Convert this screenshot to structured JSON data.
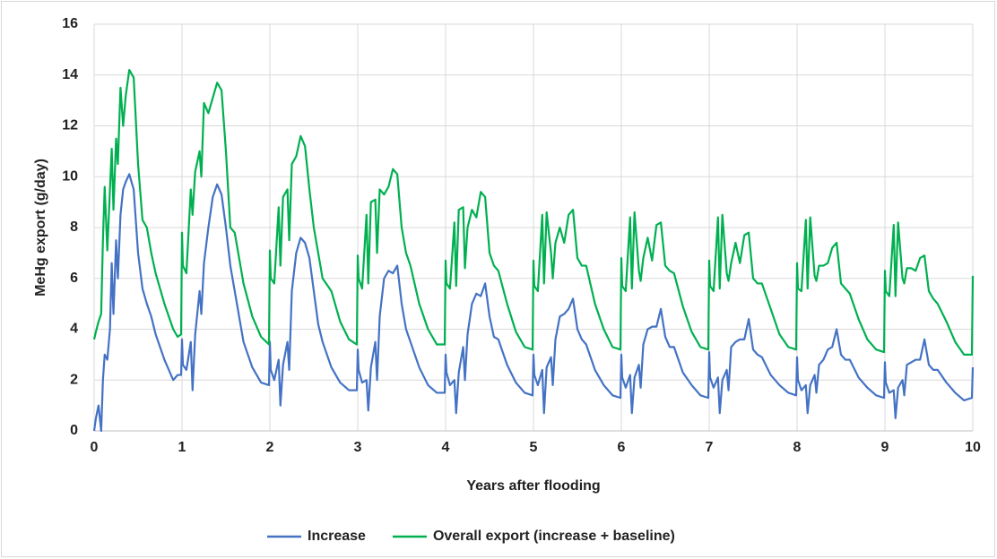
{
  "chart_data": {
    "type": "line",
    "x_label": "Years after flooding",
    "y_label": "MeHg export (g/day)",
    "x": [
      0,
      0.02,
      0.05,
      0.08,
      0.1,
      0.12,
      0.15,
      0.18,
      0.2,
      0.22,
      0.25,
      0.27,
      0.3,
      0.33,
      0.36,
      0.4,
      0.45,
      0.5,
      0.55,
      0.6,
      0.65,
      0.7,
      0.8,
      0.9,
      0.95,
      0.99,
      1,
      1.01,
      1.05,
      1.1,
      1.12,
      1.15,
      1.2,
      1.22,
      1.25,
      1.3,
      1.35,
      1.4,
      1.45,
      1.5,
      1.55,
      1.6,
      1.7,
      1.8,
      1.9,
      1.99,
      2,
      2.01,
      2.05,
      2.1,
      2.12,
      2.15,
      2.2,
      2.22,
      2.25,
      2.3,
      2.35,
      2.4,
      2.45,
      2.5,
      2.55,
      2.6,
      2.7,
      2.8,
      2.9,
      2.99,
      3,
      3.01,
      3.05,
      3.1,
      3.12,
      3.15,
      3.2,
      3.22,
      3.25,
      3.3,
      3.35,
      3.4,
      3.45,
      3.5,
      3.55,
      3.6,
      3.7,
      3.8,
      3.9,
      3.99,
      4,
      4.01,
      4.05,
      4.1,
      4.12,
      4.15,
      4.2,
      4.22,
      4.25,
      4.3,
      4.35,
      4.4,
      4.45,
      4.5,
      4.55,
      4.6,
      4.7,
      4.8,
      4.9,
      4.99,
      5,
      5.01,
      5.05,
      5.1,
      5.12,
      5.15,
      5.2,
      5.22,
      5.25,
      5.3,
      5.35,
      5.4,
      5.45,
      5.5,
      5.55,
      5.6,
      5.7,
      5.8,
      5.9,
      5.99,
      6,
      6.01,
      6.05,
      6.1,
      6.12,
      6.15,
      6.2,
      6.22,
      6.25,
      6.3,
      6.35,
      6.4,
      6.45,
      6.5,
      6.55,
      6.6,
      6.7,
      6.8,
      6.9,
      6.99,
      7,
      7.01,
      7.05,
      7.1,
      7.12,
      7.15,
      7.2,
      7.22,
      7.25,
      7.3,
      7.35,
      7.4,
      7.45,
      7.5,
      7.55,
      7.6,
      7.7,
      7.8,
      7.9,
      7.99,
      8,
      8.01,
      8.05,
      8.1,
      8.12,
      8.15,
      8.2,
      8.22,
      8.25,
      8.3,
      8.35,
      8.4,
      8.45,
      8.5,
      8.55,
      8.6,
      8.7,
      8.8,
      8.9,
      8.99,
      9,
      9.01,
      9.05,
      9.1,
      9.12,
      9.15,
      9.2,
      9.22,
      9.25,
      9.3,
      9.35,
      9.4,
      9.45,
      9.5,
      9.55,
      9.6,
      9.7,
      9.8,
      9.9,
      9.99,
      10
    ],
    "series": [
      {
        "name": "Increase",
        "color": "#4472c4",
        "values": [
          0,
          0.5,
          1,
          0,
          2,
          3,
          2.8,
          4,
          6.6,
          4.6,
          7.5,
          6,
          8.5,
          9.5,
          9.8,
          10.1,
          9.5,
          7,
          5.6,
          5,
          4.5,
          3.8,
          2.8,
          2,
          2.2,
          2.2,
          3.6,
          2.6,
          2.4,
          3.5,
          1.6,
          3.8,
          5.5,
          4.6,
          6.6,
          8,
          9.2,
          9.7,
          9.3,
          8,
          6.5,
          5.5,
          3.5,
          2.5,
          1.9,
          1.8,
          3.5,
          2.4,
          2,
          2.8,
          1,
          2.6,
          3.5,
          2.4,
          5.5,
          7,
          7.6,
          7.4,
          6.8,
          5.5,
          4.2,
          3.5,
          2.5,
          1.9,
          1.6,
          1.6,
          3.2,
          2.4,
          1.9,
          2,
          0.8,
          2.5,
          3.5,
          2,
          4.5,
          6,
          6.3,
          6.2,
          6.5,
          5,
          4,
          3.5,
          2.5,
          1.8,
          1.5,
          1.5,
          3,
          2.3,
          1.8,
          2,
          0.7,
          2.3,
          3.3,
          2,
          3.8,
          5,
          5.4,
          5.3,
          5.8,
          4.5,
          3.7,
          3.6,
          2.6,
          1.9,
          1.5,
          1.4,
          3,
          2.2,
          1.8,
          2.4,
          0.7,
          2.5,
          2.9,
          1.8,
          3.6,
          4.5,
          4.6,
          4.8,
          5.2,
          4,
          3.6,
          3.4,
          2.4,
          1.8,
          1.4,
          1.3,
          3,
          2.1,
          1.7,
          2.2,
          0.7,
          2.1,
          2.6,
          1.7,
          3.4,
          4,
          4.1,
          4.1,
          4.8,
          3.7,
          3.3,
          3.3,
          2.3,
          1.8,
          1.4,
          1.3,
          3.1,
          2.1,
          1.7,
          2.1,
          0.7,
          2,
          2.4,
          1.6,
          3.3,
          3.5,
          3.6,
          3.6,
          4.4,
          3.2,
          3,
          2.9,
          2.2,
          1.8,
          1.5,
          1.4,
          2.9,
          2,
          1.6,
          1.8,
          0.7,
          1.8,
          2.2,
          1.5,
          2.6,
          2.8,
          3.2,
          3.3,
          4,
          3,
          2.8,
          2.8,
          2.1,
          1.7,
          1.4,
          1.3,
          2.7,
          1.9,
          1.5,
          1.6,
          0.5,
          1.7,
          2,
          1.4,
          2.6,
          2.7,
          2.8,
          2.8,
          3.6,
          2.6,
          2.4,
          2.4,
          1.9,
          1.5,
          1.2,
          1.3,
          2.5
        ]
      },
      {
        "name": "Overall export (increase + baseline)",
        "color": "#00b050",
        "values": [
          3.6,
          3.9,
          4.3,
          4.6,
          7.5,
          9.6,
          7.1,
          9.5,
          11.1,
          8.7,
          11.5,
          10.5,
          13.5,
          12,
          13.2,
          14.2,
          13.9,
          10.5,
          8.3,
          8,
          7,
          6.2,
          5,
          4,
          3.7,
          3.8,
          7.8,
          6.5,
          6.2,
          9.5,
          8.5,
          10.2,
          11,
          10,
          12.9,
          12.5,
          13.1,
          13.7,
          13.4,
          11,
          8,
          7.8,
          5.8,
          4.5,
          3.7,
          3.4,
          7.1,
          6,
          5.8,
          8.8,
          6.5,
          9.2,
          9.5,
          7.5,
          10.5,
          10.8,
          11.6,
          11.2,
          9.5,
          8,
          7,
          6,
          5.5,
          4.3,
          3.6,
          3.4,
          6.9,
          6,
          5.6,
          8.5,
          5.8,
          9,
          9.1,
          7,
          9.5,
          9.3,
          9.6,
          10.3,
          10.1,
          8,
          7,
          6.5,
          5,
          4,
          3.4,
          3.4,
          6.7,
          5.8,
          5.6,
          8.2,
          5.7,
          8.7,
          8.8,
          6.4,
          8,
          8.7,
          8.4,
          9.4,
          9.2,
          7,
          6.5,
          6.3,
          5,
          3.9,
          3.3,
          3.2,
          6.7,
          5.7,
          5.5,
          8.5,
          5.8,
          8.6,
          7,
          6,
          7.4,
          8,
          7.4,
          8.5,
          8.7,
          6.8,
          6.5,
          6.5,
          5,
          4,
          3.3,
          3.2,
          6.8,
          5.7,
          5.5,
          8.4,
          5.6,
          8.6,
          6.3,
          5.9,
          6.8,
          7.6,
          6.7,
          8.1,
          8.2,
          6.5,
          6.3,
          6.2,
          4.9,
          3.9,
          3.3,
          3.2,
          6.7,
          5.7,
          5.5,
          8.4,
          5.6,
          8.5,
          6.2,
          5.9,
          6.6,
          7.4,
          6.6,
          7.7,
          7.8,
          6,
          5.8,
          5.8,
          4.8,
          3.8,
          3.3,
          3.2,
          6.6,
          5.6,
          5.5,
          8.3,
          5.6,
          8.4,
          6.1,
          5.9,
          6.5,
          6.5,
          6.6,
          7.2,
          7.4,
          5.8,
          5.6,
          5.4,
          4.4,
          3.6,
          3.2,
          3.1,
          6.3,
          5.5,
          5.3,
          8.1,
          5.3,
          8.2,
          6,
          5.8,
          6.4,
          6.4,
          6.3,
          6.8,
          6.9,
          5.5,
          5.2,
          5,
          4.3,
          3.5,
          3,
          3,
          6.1
        ]
      }
    ],
    "xlim": [
      0,
      10
    ],
    "xticks": [
      0,
      1,
      2,
      3,
      4,
      5,
      6,
      7,
      8,
      9,
      10
    ],
    "ylim": [
      0,
      16
    ],
    "yticks": [
      0,
      2,
      4,
      6,
      8,
      10,
      12,
      14,
      16
    ],
    "grid": true,
    "legend": "bottom"
  }
}
